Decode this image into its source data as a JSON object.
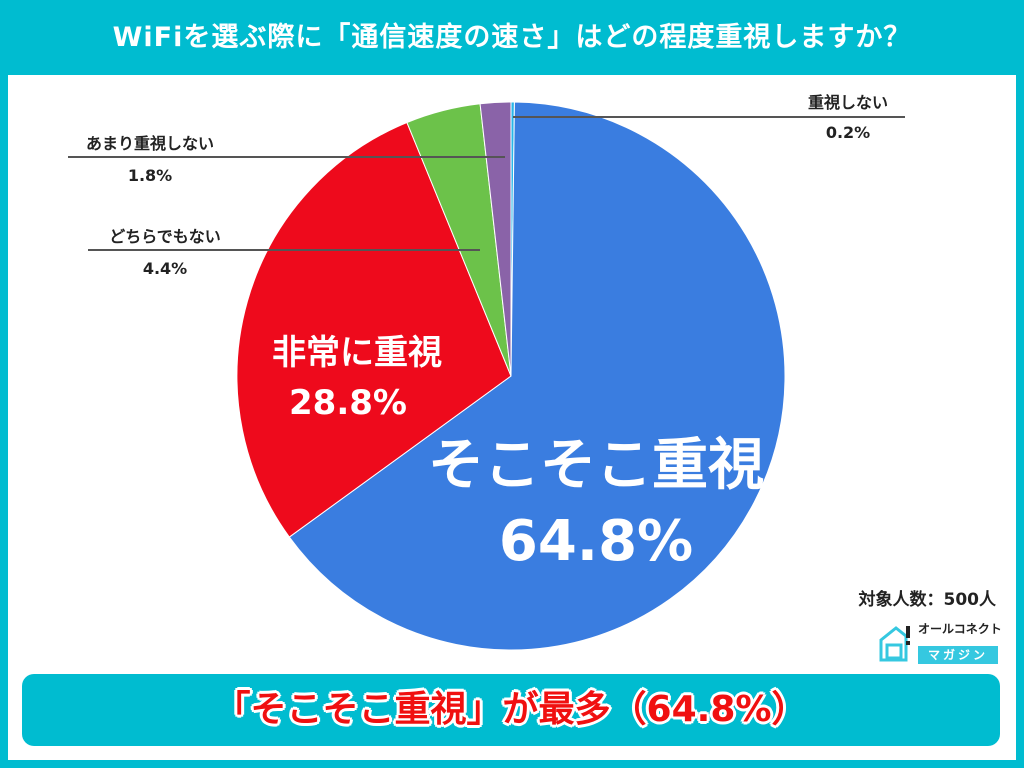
{
  "title": "WiFiを選ぶ際に「通信速度の速さ」はどの程度重視しますか？",
  "chart_data": {
    "type": "pie",
    "start": "top",
    "direction": "clockwise",
    "slices": [
      {
        "label": "重視しない",
        "value": 0.2,
        "display": "0.2%",
        "color": "#29b6e8"
      },
      {
        "label": "そこそこ重視",
        "value": 64.8,
        "display": "64.8%",
        "color": "#3a7de0"
      },
      {
        "label": "非常に重視",
        "value": 28.8,
        "display": "28.8%",
        "color": "#ee0a1c"
      },
      {
        "label": "どちらでもない",
        "value": 4.4,
        "display": "4.4%",
        "color": "#6cc24a"
      },
      {
        "label": "あまり重視しない",
        "value": 1.8,
        "display": "1.8%",
        "color": "#8a63a8"
      }
    ]
  },
  "sample_size": "対象人数：500人",
  "logo": {
    "top": "オールコネクト",
    "bottom": "マガジン"
  },
  "banner": "「そこそこ重視」が最多（64.8%）"
}
